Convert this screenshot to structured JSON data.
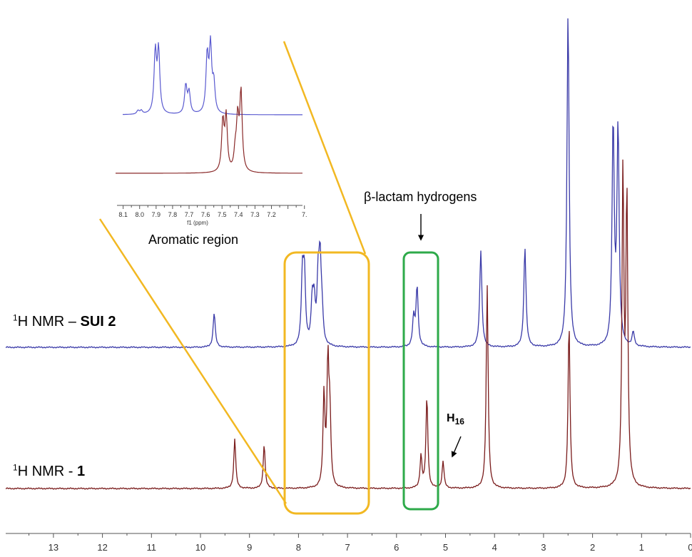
{
  "chart_data": {
    "type": "line",
    "x_axis": {
      "range": [
        14,
        0
      ],
      "reversed": true,
      "ticks": [
        "13",
        "12",
        "11",
        "10",
        "9",
        "8",
        "7",
        "6",
        "5",
        "4",
        "3",
        "2",
        "1",
        "0"
      ]
    },
    "grid": false,
    "series": [
      {
        "name": "¹H NMR – SUI 2",
        "color": "#3a3aa8",
        "peaks": [
          {
            "ppm": 9.72,
            "height": 48
          },
          {
            "ppm": 7.92,
            "height": 95
          },
          {
            "ppm": 7.88,
            "height": 98
          },
          {
            "ppm": 7.72,
            "height": 58
          },
          {
            "ppm": 7.68,
            "height": 55
          },
          {
            "ppm": 7.6,
            "height": 85
          },
          {
            "ppm": 7.56,
            "height": 110
          },
          {
            "ppm": 7.52,
            "height": 40
          },
          {
            "ppm": 5.65,
            "height": 40
          },
          {
            "ppm": 5.58,
            "height": 84
          },
          {
            "ppm": 4.28,
            "height": 136
          },
          {
            "ppm": 3.38,
            "height": 140
          },
          {
            "ppm": 2.5,
            "height": 470
          },
          {
            "ppm": 1.58,
            "height": 310
          },
          {
            "ppm": 1.48,
            "height": 305
          },
          {
            "ppm": 1.17,
            "height": 20
          }
        ]
      },
      {
        "name": "¹H NMR - 1",
        "color": "#7a1c1c",
        "peaks": [
          {
            "ppm": 9.3,
            "height": 70
          },
          {
            "ppm": 8.7,
            "height": 62
          },
          {
            "ppm": 7.48,
            "height": 128
          },
          {
            "ppm": 7.4,
            "height": 172
          },
          {
            "ppm": 7.36,
            "height": 95
          },
          {
            "ppm": 5.5,
            "height": 45
          },
          {
            "ppm": 5.38,
            "height": 128
          },
          {
            "ppm": 5.05,
            "height": 38
          },
          {
            "ppm": 4.15,
            "height": 285
          },
          {
            "ppm": 2.48,
            "height": 232
          },
          {
            "ppm": 1.38,
            "height": 438
          },
          {
            "ppm": 1.3,
            "height": 405
          }
        ]
      }
    ],
    "inset": {
      "label": "Aromatic region",
      "xlabel": "f1 (ppm)",
      "range": [
        8.1,
        7.0
      ],
      "ticks": [
        "8.1",
        "8.0",
        "7.9",
        "7.8",
        "7.7",
        "7.6",
        "7.5",
        "7.4",
        "7.3",
        "7.2",
        "7."
      ]
    },
    "annotations": {
      "beta_lactam": "β-lactam hydrogens",
      "h16": "H",
      "h16_sub": "16"
    },
    "series_labels": {
      "sui2_pre": "H NMR – ",
      "sui2_bold": "SUI 2",
      "one_pre": "H NMR - ",
      "one_bold": "1",
      "sup": "1"
    },
    "colors": {
      "aromatic_box": "#f2b822",
      "lactam_box": "#2eaa4a"
    }
  }
}
